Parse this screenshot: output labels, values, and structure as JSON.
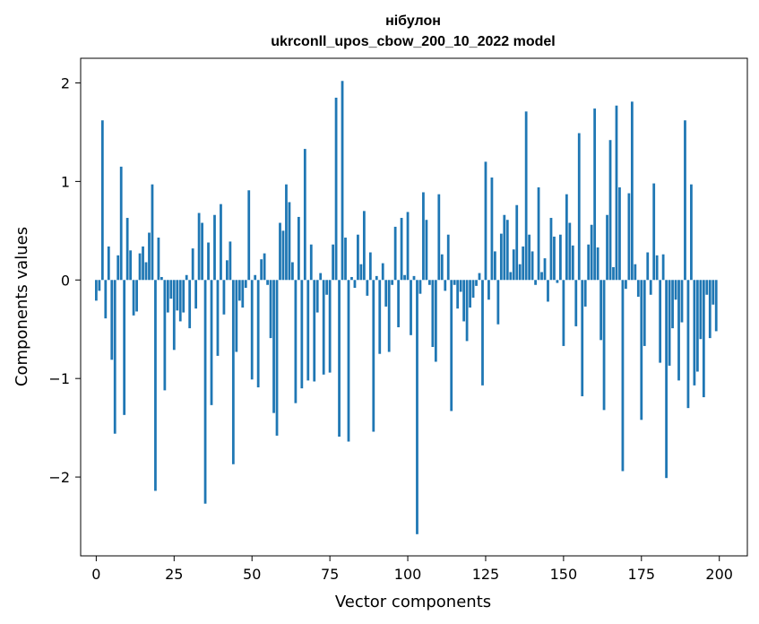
{
  "chart_data": {
    "type": "bar",
    "title": "нібулон",
    "subtitle": "ukrconll_upos_cbow_200_10_2022 model",
    "xlabel": "Vector components",
    "ylabel": "Components values",
    "xlim": [
      -5,
      209
    ],
    "ylim": [
      -2.8,
      2.25
    ],
    "xticks": [
      0,
      25,
      50,
      75,
      100,
      125,
      150,
      175,
      200
    ],
    "yticks": [
      -2,
      -1,
      0,
      1,
      2
    ],
    "ytick_labels": [
      "−2",
      "−1",
      "0",
      "1",
      "2"
    ],
    "grid": false,
    "bar_color": "#1f77b4",
    "x": [
      0,
      1,
      2,
      3,
      4,
      5,
      6,
      7,
      8,
      9,
      10,
      11,
      12,
      13,
      14,
      15,
      16,
      17,
      18,
      19,
      20,
      21,
      22,
      23,
      24,
      25,
      26,
      27,
      28,
      29,
      30,
      31,
      32,
      33,
      34,
      35,
      36,
      37,
      38,
      39,
      40,
      41,
      42,
      43,
      44,
      45,
      46,
      47,
      48,
      49,
      50,
      51,
      52,
      53,
      54,
      55,
      56,
      57,
      58,
      59,
      60,
      61,
      62,
      63,
      64,
      65,
      66,
      67,
      68,
      69,
      70,
      71,
      72,
      73,
      74,
      75,
      76,
      77,
      78,
      79,
      80,
      81,
      82,
      83,
      84,
      85,
      86,
      87,
      88,
      89,
      90,
      91,
      92,
      93,
      94,
      95,
      96,
      97,
      98,
      99,
      100,
      101,
      102,
      103,
      104,
      105,
      106,
      107,
      108,
      109,
      110,
      111,
      112,
      113,
      114,
      115,
      116,
      117,
      118,
      119,
      120,
      121,
      122,
      123,
      124,
      125,
      126,
      127,
      128,
      129,
      130,
      131,
      132,
      133,
      134,
      135,
      136,
      137,
      138,
      139,
      140,
      141,
      142,
      143,
      144,
      145,
      146,
      147,
      148,
      149,
      150,
      151,
      152,
      153,
      154,
      155,
      156,
      157,
      158,
      159,
      160,
      161,
      162,
      163,
      164,
      165,
      166,
      167,
      168,
      169,
      170,
      171,
      172,
      173,
      174,
      175,
      176,
      177,
      178,
      179,
      180,
      181,
      182,
      183,
      184,
      185,
      186,
      187,
      188,
      189,
      190,
      191,
      192,
      193,
      194,
      195,
      196,
      197,
      198,
      199
    ],
    "values": [
      -0.21,
      -0.11,
      1.62,
      -0.39,
      0.34,
      -0.81,
      -1.56,
      0.25,
      1.15,
      -1.37,
      0.63,
      0.3,
      -0.36,
      -0.32,
      0.27,
      0.34,
      0.18,
      0.48,
      0.97,
      -2.14,
      0.43,
      0.03,
      -1.12,
      -0.33,
      -0.19,
      -0.71,
      -0.31,
      -0.42,
      -0.33,
      0.05,
      -0.49,
      0.32,
      -0.29,
      0.68,
      0.58,
      -2.27,
      0.38,
      -1.27,
      0.66,
      -0.77,
      0.77,
      -0.35,
      0.2,
      0.39,
      -1.87,
      -0.73,
      -0.21,
      -0.28,
      -0.08,
      0.91,
      -1.01,
      0.05,
      -1.09,
      0.21,
      0.27,
      -0.05,
      -0.59,
      -1.35,
      -1.58,
      0.58,
      0.5,
      0.97,
      0.79,
      0.18,
      -1.25,
      0.64,
      -1.1,
      1.33,
      -1.02,
      0.36,
      -1.03,
      -0.33,
      0.07,
      -0.96,
      -0.15,
      -0.94,
      0.36,
      1.85,
      -1.59,
      2.02,
      0.43,
      -1.64,
      0.03,
      -0.08,
      0.46,
      0.16,
      0.7,
      -0.16,
      0.28,
      -1.54,
      0.04,
      -0.75,
      0.17,
      -0.27,
      -0.73,
      -0.05,
      0.54,
      -0.48,
      0.63,
      0.05,
      0.69,
      -0.56,
      0.04,
      -2.58,
      -0.14,
      0.89,
      0.61,
      -0.05,
      -0.68,
      -0.83,
      0.87,
      0.26,
      -0.11,
      0.46,
      -1.33,
      -0.05,
      -0.29,
      -0.12,
      -0.42,
      -0.62,
      -0.28,
      -0.18,
      -0.06,
      0.07,
      -1.07,
      1.2,
      -0.2,
      1.04,
      0.29,
      -0.45,
      0.47,
      0.66,
      0.61,
      0.08,
      0.31,
      0.76,
      0.16,
      0.34,
      1.71,
      0.46,
      0.29,
      -0.05,
      0.94,
      0.08,
      0.22,
      -0.22,
      0.63,
      0.44,
      -0.03,
      0.46,
      -0.67,
      0.87,
      0.58,
      0.35,
      -0.47,
      1.49,
      -1.18,
      -0.27,
      0.36,
      0.56,
      1.74,
      0.33,
      -0.61,
      -1.32,
      0.66,
      1.42,
      0.13,
      1.77,
      0.94,
      -1.94,
      -0.09,
      0.88,
      1.81,
      0.16,
      -0.17,
      -1.42,
      -0.67,
      0.28,
      -0.15,
      0.98,
      0.25,
      -0.84,
      0.26,
      -2.01,
      -0.87,
      -0.49,
      -0.2,
      -1.02,
      -0.43,
      1.62,
      -1.3,
      0.97,
      -1.07,
      -0.93,
      -0.6,
      -1.19,
      -0.15,
      -0.59,
      -0.25,
      -0.52
    ]
  }
}
